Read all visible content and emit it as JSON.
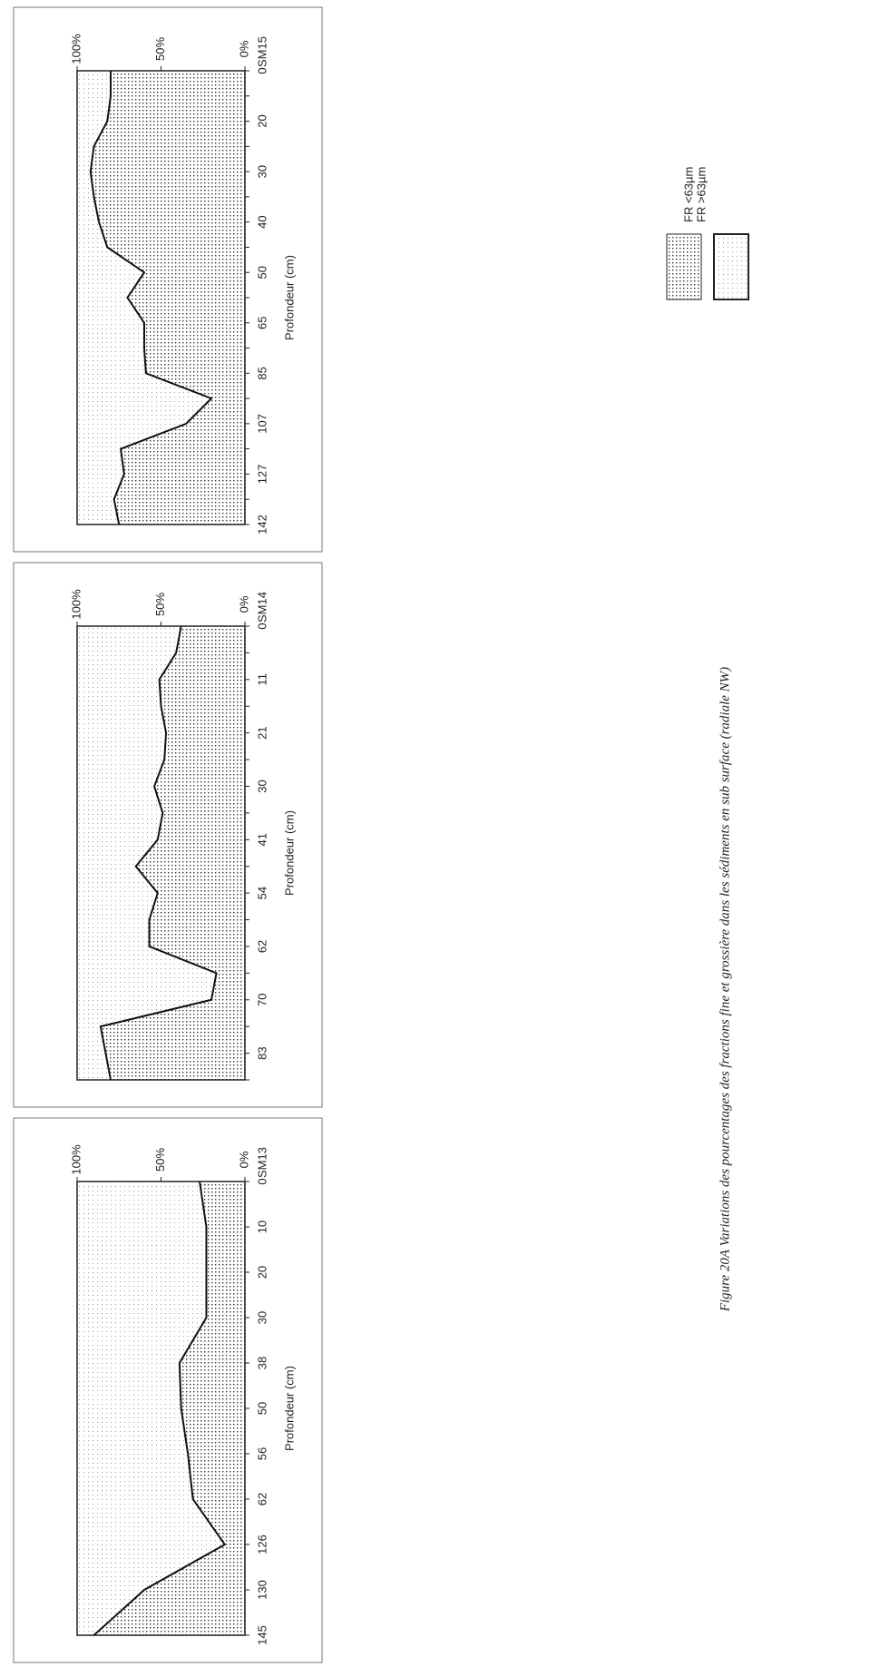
{
  "chart_data": [
    {
      "type": "area",
      "label": "SM15",
      "xlabel": "Profondeur (cm)",
      "categories": [
        0,
        null,
        20,
        null,
        30,
        null,
        40,
        null,
        50,
        null,
        65,
        null,
        85,
        null,
        107,
        null,
        127,
        null,
        142
      ],
      "values": [
        80,
        80,
        82,
        90,
        92,
        90,
        87,
        82,
        60,
        70,
        60,
        60,
        59,
        20,
        35,
        74,
        72,
        78,
        75
      ],
      "ylim": [
        0,
        100
      ],
      "yticks": [
        {
          "value": 0,
          "label": "0%"
        },
        {
          "value": 50,
          "label": "50%"
        },
        {
          "value": 100,
          "label": "100%"
        }
      ]
    },
    {
      "type": "area",
      "label": "SM14",
      "xlabel": "Profondeur (cm)",
      "categories": [
        0,
        null,
        11,
        null,
        21,
        null,
        30,
        null,
        41,
        null,
        54,
        null,
        62,
        null,
        70,
        null,
        83,
        null
      ],
      "values": [
        38,
        41,
        51,
        50,
        47,
        48,
        54,
        49,
        52,
        65,
        52,
        57,
        57,
        17,
        20,
        86,
        83,
        80
      ],
      "ylim": [
        0,
        100
      ],
      "yticks": [
        {
          "value": 0,
          "label": "0%"
        },
        {
          "value": 50,
          "label": "50%"
        },
        {
          "value": 100,
          "label": "100%"
        }
      ]
    },
    {
      "type": "area",
      "label": "SM13",
      "xlabel": "Profondeur (cm)",
      "categories": [
        0,
        10,
        20,
        30,
        38,
        50,
        56,
        62,
        126,
        130,
        145
      ],
      "values": [
        27,
        23,
        23,
        23,
        39,
        38,
        34,
        31,
        12,
        60,
        90
      ],
      "ylim": [
        0,
        100
      ],
      "yticks": [
        {
          "value": 0,
          "label": "0%"
        },
        {
          "value": 50,
          "label": "50%"
        },
        {
          "value": 100,
          "label": "100%"
        }
      ]
    }
  ],
  "legend": [
    "FR <63µm",
    "FR >63µm"
  ],
  "caption": "Figure 20A Variations des pourcentages des fractions fine et grossière dans les sédiments en sub surface (radiale NW)"
}
